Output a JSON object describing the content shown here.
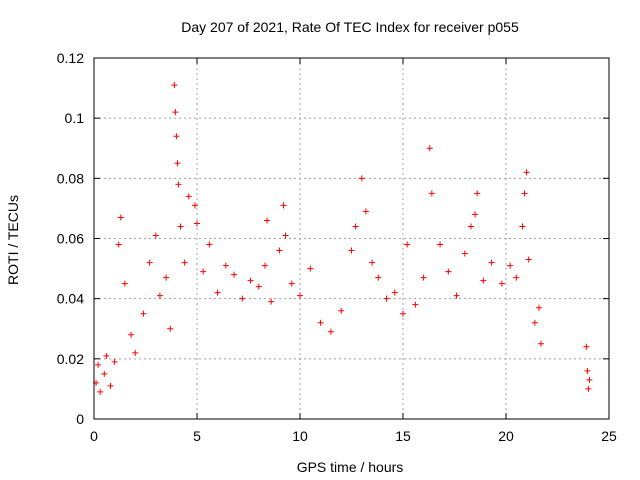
{
  "chart_data": {
    "type": "scatter",
    "title": "Day 207 of 2021, Rate Of TEC Index for receiver p055",
    "xlabel": "GPS time / hours",
    "ylabel": "ROTI / TECUs",
    "xlim": [
      0,
      25
    ],
    "ylim": [
      0,
      0.12
    ],
    "xticks": [
      "0",
      "5",
      "10",
      "15",
      "20",
      "25"
    ],
    "yticks": [
      "0",
      "0.02",
      "0.04",
      "0.06",
      "0.08",
      "0.1",
      "0.12"
    ],
    "grid": true,
    "marker": "+",
    "color": "#ff0000",
    "series": [
      {
        "points": [
          [
            0.1,
            0.012
          ],
          [
            0.2,
            0.018
          ],
          [
            0.3,
            0.009
          ],
          [
            0.5,
            0.015
          ],
          [
            0.6,
            0.021
          ],
          [
            0.8,
            0.011
          ],
          [
            1.0,
            0.019
          ],
          [
            1.2,
            0.058
          ],
          [
            1.3,
            0.067
          ],
          [
            1.5,
            0.045
          ],
          [
            1.8,
            0.028
          ],
          [
            2.0,
            0.022
          ],
          [
            2.4,
            0.035
          ],
          [
            2.7,
            0.052
          ],
          [
            3.0,
            0.061
          ],
          [
            3.2,
            0.041
          ],
          [
            3.5,
            0.047
          ],
          [
            3.7,
            0.03
          ],
          [
            3.9,
            0.111
          ],
          [
            3.95,
            0.102
          ],
          [
            4.0,
            0.094
          ],
          [
            4.05,
            0.085
          ],
          [
            4.1,
            0.078
          ],
          [
            4.2,
            0.064
          ],
          [
            4.4,
            0.052
          ],
          [
            4.6,
            0.074
          ],
          [
            4.9,
            0.071
          ],
          [
            5.0,
            0.065
          ],
          [
            5.3,
            0.049
          ],
          [
            5.6,
            0.058
          ],
          [
            6.0,
            0.042
          ],
          [
            6.4,
            0.051
          ],
          [
            6.8,
            0.048
          ],
          [
            7.2,
            0.04
          ],
          [
            7.6,
            0.046
          ],
          [
            8.0,
            0.044
          ],
          [
            8.3,
            0.051
          ],
          [
            8.4,
            0.066
          ],
          [
            8.6,
            0.039
          ],
          [
            9.0,
            0.056
          ],
          [
            9.2,
            0.071
          ],
          [
            9.3,
            0.061
          ],
          [
            9.6,
            0.045
          ],
          [
            10.0,
            0.041
          ],
          [
            10.5,
            0.05
          ],
          [
            11.0,
            0.032
          ],
          [
            11.5,
            0.029
          ],
          [
            12.0,
            0.036
          ],
          [
            12.5,
            0.056
          ],
          [
            12.7,
            0.064
          ],
          [
            13.0,
            0.08
          ],
          [
            13.2,
            0.069
          ],
          [
            13.5,
            0.052
          ],
          [
            13.8,
            0.047
          ],
          [
            14.2,
            0.04
          ],
          [
            14.6,
            0.042
          ],
          [
            15.0,
            0.035
          ],
          [
            15.2,
            0.058
          ],
          [
            15.6,
            0.038
          ],
          [
            16.0,
            0.047
          ],
          [
            16.3,
            0.09
          ],
          [
            16.4,
            0.075
          ],
          [
            16.8,
            0.058
          ],
          [
            17.2,
            0.049
          ],
          [
            17.6,
            0.041
          ],
          [
            18.0,
            0.055
          ],
          [
            18.3,
            0.064
          ],
          [
            18.5,
            0.068
          ],
          [
            18.6,
            0.075
          ],
          [
            18.9,
            0.046
          ],
          [
            19.3,
            0.052
          ],
          [
            19.8,
            0.045
          ],
          [
            20.2,
            0.051
          ],
          [
            20.5,
            0.047
          ],
          [
            20.8,
            0.064
          ],
          [
            20.9,
            0.075
          ],
          [
            21.0,
            0.082
          ],
          [
            21.1,
            0.053
          ],
          [
            21.4,
            0.032
          ],
          [
            21.6,
            0.037
          ],
          [
            21.7,
            0.025
          ],
          [
            23.9,
            0.024
          ],
          [
            23.95,
            0.016
          ],
          [
            24.0,
            0.01
          ],
          [
            24.05,
            0.013
          ]
        ]
      }
    ]
  }
}
